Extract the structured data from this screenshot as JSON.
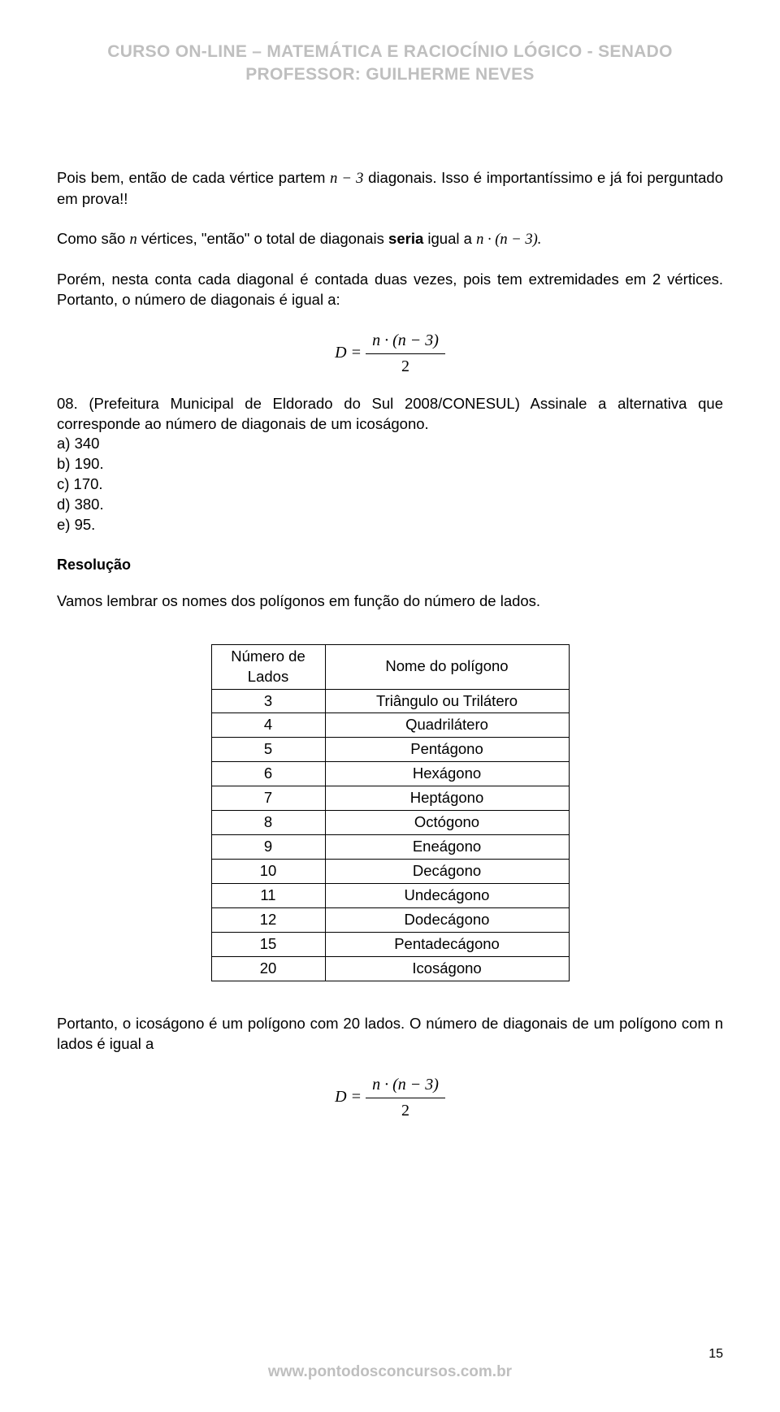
{
  "header": {
    "line1": "CURSO ON-LINE – MATEMÁTICA E RACIOCÍNIO LÓGICO - SENADO",
    "line2": "PROFESSOR: GUILHERME NEVES"
  },
  "paragraphs": {
    "p1a": "Pois bem, então de cada vértice partem ",
    "p1b": " diagonais. Isso é importantíssimo e já foi perguntado em prova!!",
    "p2a": "Como são ",
    "p2b": " vértices, \"então\" o total de diagonais ",
    "p2c": "seria",
    "p2d": " igual a ",
    "p3": "Porém, nesta conta cada diagonal é contada duas vezes, pois tem extremidades em 2 vértices. Portanto, o número de diagonais é igual a:"
  },
  "math": {
    "n_minus_3": "n − 3",
    "n": "n",
    "n_times_n_minus_3": "n · (n − 3)",
    "n_times_n_minus_3_dot": "n · (n − 3).",
    "D_eq": "D =",
    "two": "2"
  },
  "question": {
    "number": "08.",
    "text": "   (Prefeitura  Municipal  de  Eldorado  do  Sul  2008/CONESUL)  Assinale  a alternativa que corresponde ao número de diagonais de um icoságono.",
    "alts": [
      "a) 340",
      "b) 190.",
      "c) 170.",
      "d) 380.",
      "e) 95."
    ]
  },
  "resolution": {
    "title": "Resolução",
    "intro": "Vamos lembrar os nomes dos polígonos em função do número de lados."
  },
  "table": {
    "header_left": "Número de Lados",
    "header_right": "Nome do polígono",
    "rows": [
      [
        "3",
        "Triângulo ou Trilátero"
      ],
      [
        "4",
        "Quadrilátero"
      ],
      [
        "5",
        "Pentágono"
      ],
      [
        "6",
        "Hexágono"
      ],
      [
        "7",
        "Heptágono"
      ],
      [
        "8",
        "Octógono"
      ],
      [
        "9",
        "Eneágono"
      ],
      [
        "10",
        "Decágono"
      ],
      [
        "11",
        "Undecágono"
      ],
      [
        "12",
        "Dodecágono"
      ],
      [
        "15",
        "Pentadecágono"
      ],
      [
        "20",
        "Icoságono"
      ]
    ]
  },
  "closing": {
    "text": "Portanto, o icoságono é um polígono com 20 lados. O número de diagonais de um polígono com n lados é igual a"
  },
  "footer": {
    "url": "www.pontodosconcursos.com.br",
    "page": "15"
  }
}
